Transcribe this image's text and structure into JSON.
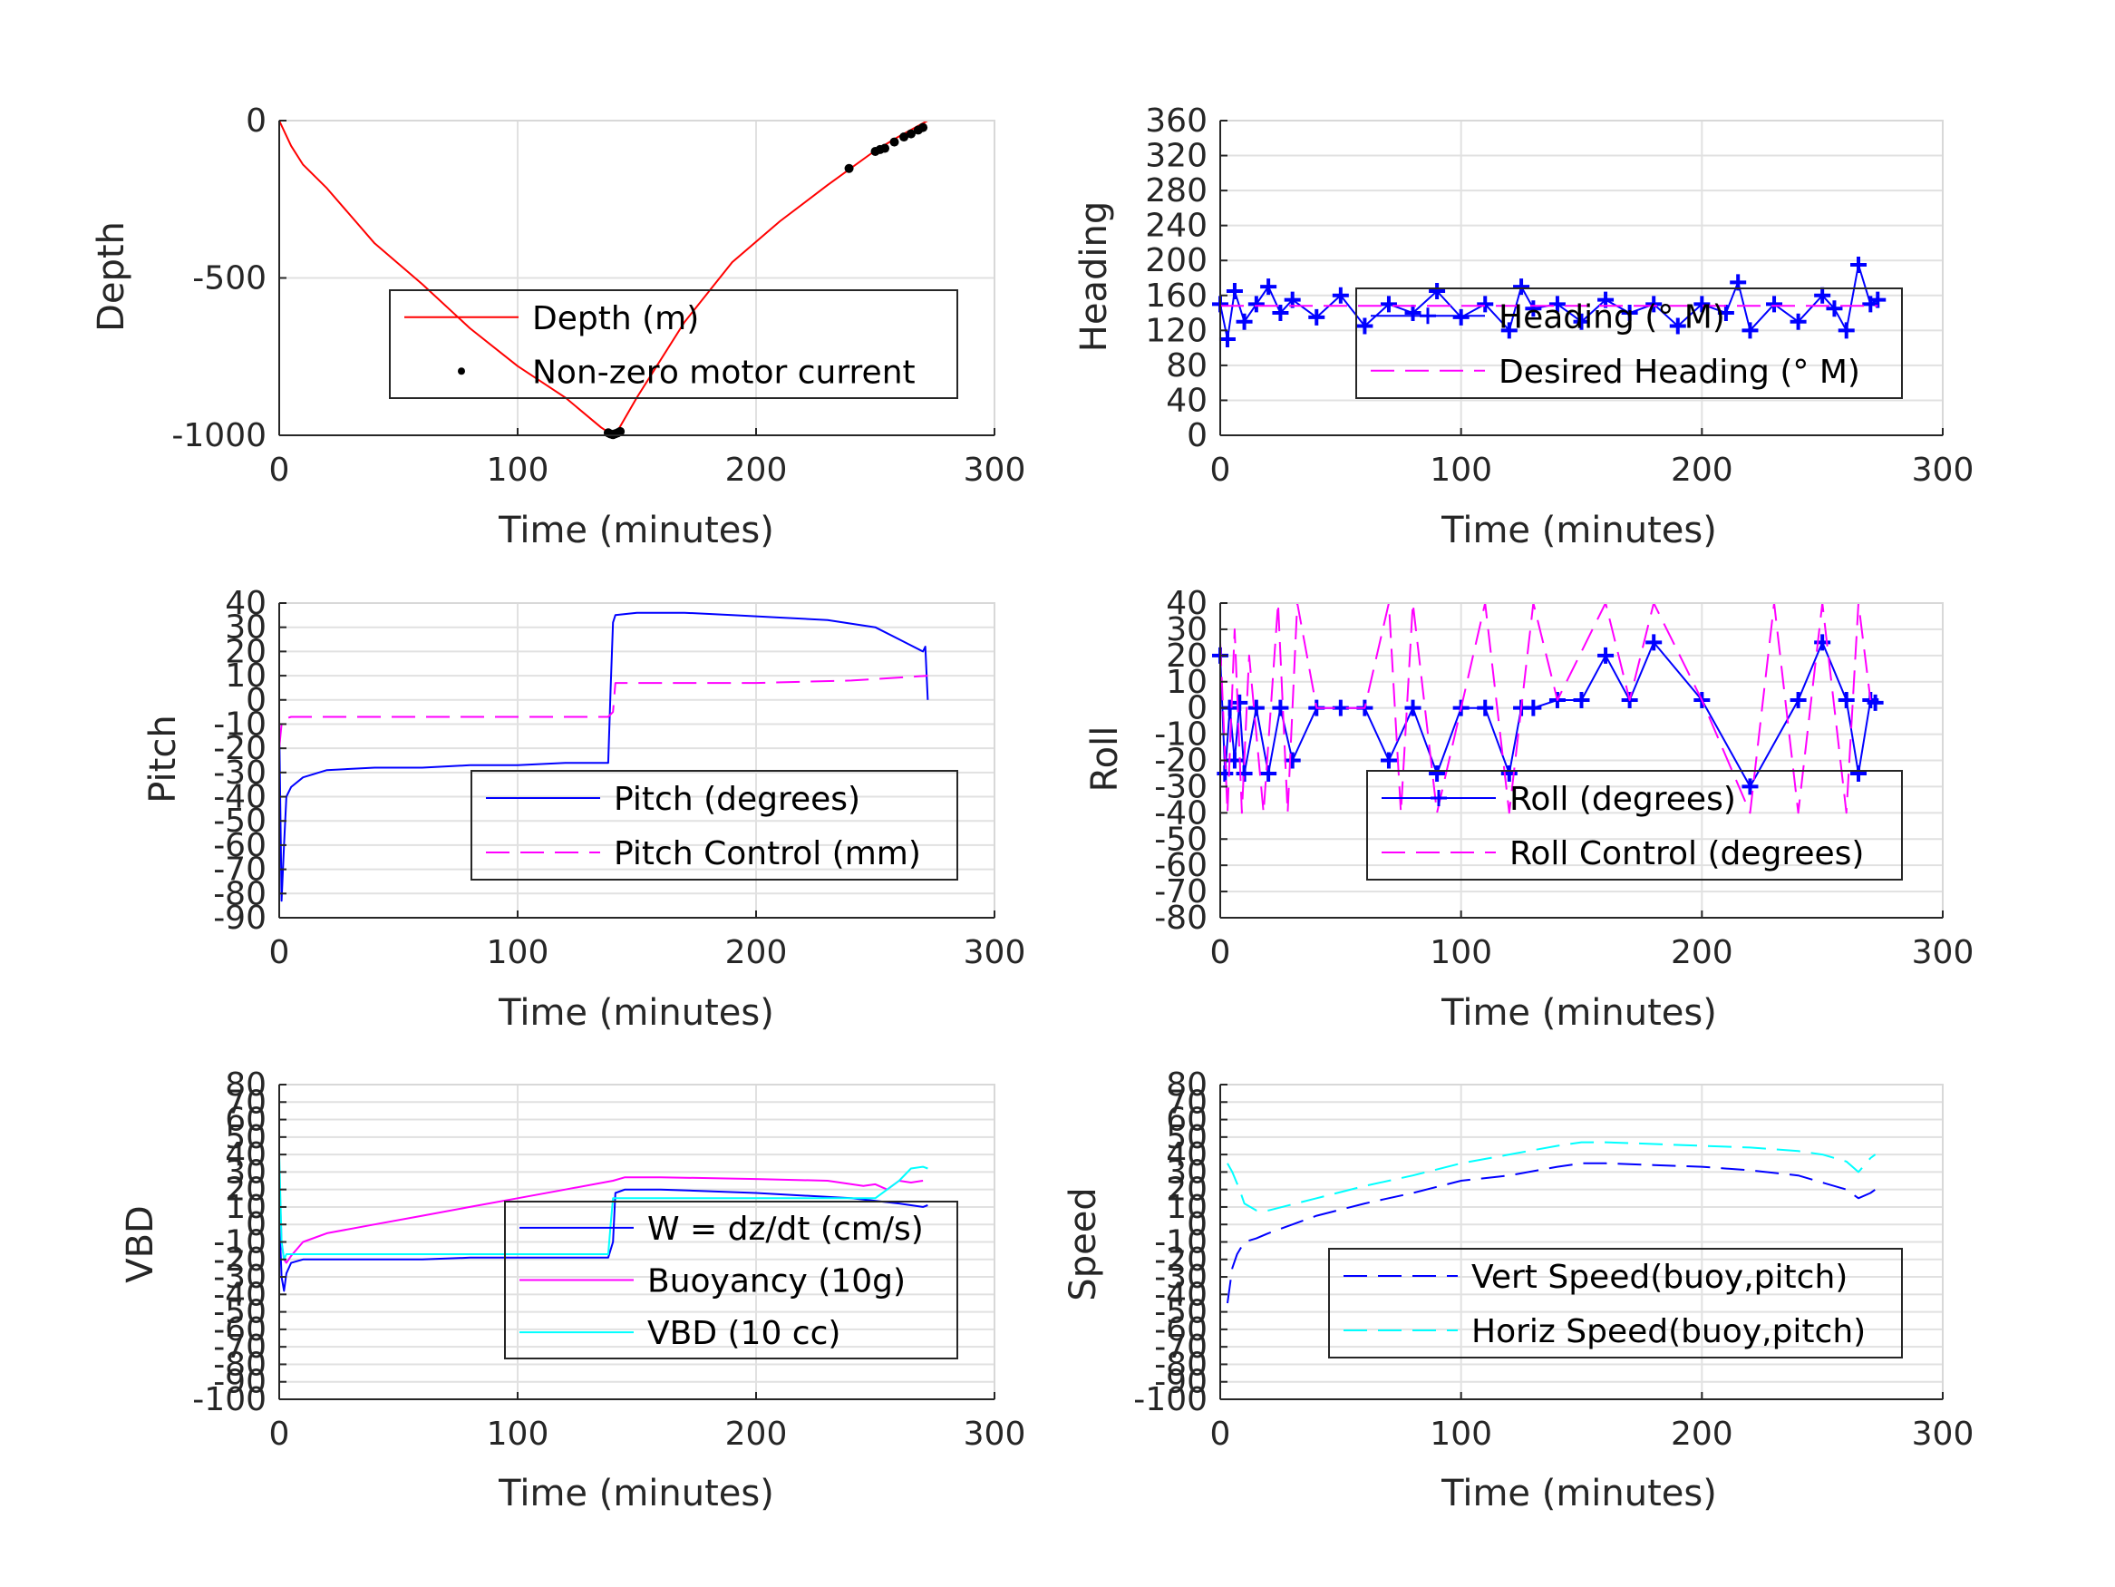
{
  "chart_data": [
    {
      "id": "depth",
      "type": "line",
      "title": "",
      "xlabel": "Time (minutes)",
      "ylabel": "Depth",
      "xlim": [
        0,
        300
      ],
      "ylim": [
        -1000,
        0
      ],
      "xticks": [
        "0",
        "100",
        "200",
        "300"
      ],
      "yticks": [
        "-1000",
        "-500",
        "0"
      ],
      "grid": true,
      "legend_position": "lower-right",
      "series": [
        {
          "name": "Depth (m)",
          "color": "#ff0000",
          "style": "solid",
          "x": [
            0,
            5,
            10,
            20,
            40,
            60,
            80,
            100,
            120,
            135,
            139,
            142,
            150,
            170,
            190,
            210,
            230,
            250,
            260,
            272
          ],
          "y": [
            0,
            -80,
            -140,
            -215,
            -390,
            -520,
            -660,
            -780,
            -880,
            -975,
            -995,
            -985,
            -880,
            -640,
            -450,
            -320,
            -205,
            -95,
            -50,
            0
          ]
        },
        {
          "name": "Non-zero motor current",
          "color": "#000000",
          "style": "markers",
          "x": [
            138,
            139,
            140,
            141,
            142,
            143,
            239,
            250,
            252,
            254,
            258,
            262,
            265,
            268,
            270
          ],
          "y": [
            -992,
            -996,
            -998,
            -995,
            -992,
            -988,
            -152,
            -98,
            -92,
            -88,
            -68,
            -52,
            -42,
            -30,
            -22
          ]
        }
      ]
    },
    {
      "id": "heading",
      "type": "line",
      "title": "",
      "xlabel": "Time (minutes)",
      "ylabel": "Heading",
      "xlim": [
        0,
        300
      ],
      "ylim": [
        0,
        360
      ],
      "xticks": [
        "0",
        "100",
        "200",
        "300"
      ],
      "yticks": [
        "0",
        "40",
        "80",
        "120",
        "160",
        "200",
        "240",
        "280",
        "320",
        "360"
      ],
      "grid": true,
      "legend_position": "center-right",
      "series": [
        {
          "name": "Heading (° M)",
          "color": "#0000ff",
          "style": "solid-plus-markers",
          "x": [
            0,
            3,
            6,
            10,
            15,
            20,
            25,
            30,
            40,
            50,
            60,
            70,
            80,
            90,
            100,
            110,
            120,
            125,
            130,
            140,
            150,
            160,
            170,
            180,
            190,
            200,
            210,
            215,
            220,
            230,
            240,
            250,
            255,
            260,
            265,
            270,
            273
          ],
          "y": [
            150,
            110,
            165,
            130,
            150,
            170,
            140,
            155,
            135,
            160,
            125,
            150,
            140,
            165,
            135,
            150,
            120,
            170,
            145,
            150,
            130,
            155,
            140,
            150,
            125,
            150,
            140,
            175,
            120,
            150,
            130,
            160,
            145,
            120,
            195,
            150,
            155
          ]
        },
        {
          "name": "Desired Heading (° M)",
          "color": "#ff00ff",
          "style": "dashed",
          "x": [
            0,
            273
          ],
          "y": [
            148,
            148
          ]
        }
      ]
    },
    {
      "id": "pitch",
      "type": "line",
      "title": "",
      "xlabel": "Time (minutes)",
      "ylabel": "Pitch",
      "xlim": [
        0,
        300
      ],
      "ylim": [
        -90,
        40
      ],
      "xticks": [
        "0",
        "100",
        "200",
        "300"
      ],
      "yticks": [
        "-90",
        "-80",
        "-70",
        "-60",
        "-50",
        "-40",
        "-30",
        "-20",
        "-10",
        "0",
        "10",
        "20",
        "30",
        "40"
      ],
      "grid": true,
      "legend_position": "lower-right",
      "series": [
        {
          "name": "Pitch (degrees)",
          "color": "#0000ff",
          "style": "solid",
          "x": [
            0,
            1,
            2,
            3,
            5,
            10,
            20,
            40,
            60,
            80,
            100,
            120,
            138,
            139,
            140,
            141,
            150,
            170,
            190,
            210,
            230,
            250,
            260,
            270,
            271,
            272
          ],
          "y": [
            -10,
            -83,
            -60,
            -40,
            -36,
            -32,
            -29,
            -28,
            -28,
            -27,
            -27,
            -26,
            -26,
            5,
            32,
            35,
            36,
            36,
            35,
            34,
            33,
            30,
            25,
            20,
            22,
            0
          ]
        },
        {
          "name": "Pitch Control (mm)",
          "color": "#ff00ff",
          "style": "dashed",
          "x": [
            0,
            1,
            2,
            5,
            20,
            60,
            100,
            138,
            140,
            141,
            160,
            200,
            240,
            272
          ],
          "y": [
            -20,
            -10,
            -8,
            -7,
            -7,
            -7,
            -7,
            -7,
            -5,
            7,
            7,
            7,
            8,
            10
          ]
        }
      ]
    },
    {
      "id": "roll",
      "type": "line",
      "title": "",
      "xlabel": "Time (minutes)",
      "ylabel": "Roll",
      "xlim": [
        0,
        300
      ],
      "ylim": [
        -80,
        40
      ],
      "xticks": [
        "0",
        "100",
        "200",
        "300"
      ],
      "yticks": [
        "-80",
        "-70",
        "-60",
        "-50",
        "-40",
        "-30",
        "-20",
        "-10",
        "0",
        "10",
        "20",
        "30",
        "40"
      ],
      "grid": true,
      "legend_position": "lower-right",
      "series": [
        {
          "name": "Roll (degrees)",
          "color": "#0000ff",
          "style": "solid-plus-markers",
          "x": [
            0,
            2,
            4,
            6,
            8,
            10,
            15,
            20,
            25,
            30,
            40,
            50,
            60,
            70,
            80,
            90,
            100,
            110,
            120,
            125,
            130,
            140,
            150,
            160,
            170,
            180,
            200,
            220,
            240,
            250,
            260,
            265,
            270,
            272
          ],
          "y": [
            20,
            -25,
            0,
            -20,
            2,
            -25,
            0,
            -25,
            0,
            -20,
            0,
            0,
            0,
            -20,
            0,
            -25,
            0,
            0,
            -25,
            0,
            0,
            3,
            3,
            20,
            3,
            25,
            3,
            -30,
            3,
            25,
            3,
            -25,
            3,
            2
          ]
        },
        {
          "name": "Roll Control (degrees)",
          "color": "#ff00ff",
          "style": "dashed",
          "x": [
            0,
            3,
            6,
            9,
            12,
            18,
            24,
            28,
            32,
            40,
            50,
            60,
            70,
            75,
            80,
            90,
            100,
            110,
            120,
            130,
            140,
            160,
            170,
            180,
            200,
            220,
            230,
            240,
            250,
            260,
            265,
            270
          ],
          "y": [
            25,
            -40,
            30,
            -40,
            20,
            -40,
            40,
            -40,
            40,
            0,
            0,
            0,
            40,
            -40,
            40,
            -40,
            0,
            40,
            -40,
            40,
            3,
            40,
            3,
            40,
            3,
            -40,
            40,
            -40,
            40,
            -40,
            40,
            3
          ]
        }
      ]
    },
    {
      "id": "vbd",
      "type": "line",
      "title": "",
      "xlabel": "Time (minutes)",
      "ylabel": "VBD",
      "xlim": [
        0,
        300
      ],
      "ylim": [
        -100,
        80
      ],
      "xticks": [
        "0",
        "100",
        "200",
        "300"
      ],
      "yticks": [
        "-100",
        "-90",
        "-80",
        "-70",
        "-60",
        "-50",
        "-40",
        "-30",
        "-20",
        "-10",
        "0",
        "10",
        "20",
        "30",
        "40",
        "50",
        "60",
        "70",
        "80"
      ],
      "grid": true,
      "legend_position": "lower-right",
      "series": [
        {
          "name": "W = dz/dt (cm/s)",
          "color": "#0000ff",
          "style": "solid",
          "x": [
            0,
            1,
            2,
            3,
            5,
            10,
            20,
            40,
            60,
            80,
            100,
            120,
            138,
            140,
            141,
            145,
            160,
            200,
            240,
            260,
            270,
            272
          ],
          "y": [
            5,
            -30,
            -38,
            -28,
            -22,
            -20,
            -20,
            -20,
            -20,
            -19,
            -19,
            -19,
            -19,
            -10,
            18,
            20,
            20,
            18,
            15,
            12,
            10,
            11
          ]
        },
        {
          "name": "Buoyancy (10g)",
          "color": "#ff00ff",
          "style": "solid",
          "x": [
            0,
            1,
            2,
            3,
            5,
            10,
            20,
            40,
            60,
            80,
            100,
            120,
            140,
            145,
            160,
            200,
            230,
            245,
            250,
            255,
            260,
            265,
            270
          ],
          "y": [
            30,
            -10,
            -20,
            -22,
            -18,
            -10,
            -5,
            0,
            5,
            10,
            15,
            20,
            25,
            27,
            27,
            26,
            25,
            22,
            23,
            20,
            25,
            24,
            25
          ]
        },
        {
          "name": "VBD (10 cc)",
          "color": "#00ffff",
          "style": "solid",
          "x": [
            0,
            1,
            2,
            3,
            5,
            10,
            20,
            40,
            60,
            80,
            100,
            120,
            138,
            139,
            140,
            150,
            200,
            240,
            250,
            255,
            260,
            265,
            270,
            272
          ],
          "y": [
            40,
            -10,
            -20,
            -17,
            -17,
            -17,
            -17,
            -17,
            -17,
            -17,
            -17,
            -17,
            -17,
            0,
            15,
            15,
            15,
            15,
            15,
            20,
            25,
            32,
            33,
            32
          ]
        }
      ]
    },
    {
      "id": "speed",
      "type": "line",
      "title": "",
      "xlabel": "Time (minutes)",
      "ylabel": "Speed",
      "xlim": [
        0,
        300
      ],
      "ylim": [
        -100,
        80
      ],
      "xticks": [
        "0",
        "100",
        "200",
        "300"
      ],
      "yticks": [
        "-100",
        "-90",
        "-80",
        "-70",
        "-60",
        "-50",
        "-40",
        "-30",
        "-20",
        "-10",
        "0",
        "10",
        "20",
        "30",
        "40",
        "50",
        "60",
        "70",
        "80"
      ],
      "grid": true,
      "legend_position": "lower-right",
      "series": [
        {
          "name": "Vert Speed(buoy,pitch)",
          "color": "#0000ff",
          "style": "dashed",
          "x": [
            3,
            5,
            7,
            10,
            15,
            20,
            40,
            60,
            80,
            100,
            120,
            140,
            150,
            160,
            180,
            200,
            220,
            240,
            250,
            260,
            265,
            270,
            272
          ],
          "y": [
            -45,
            -25,
            -17,
            -10,
            -8,
            -5,
            5,
            12,
            18,
            25,
            28,
            33,
            35,
            35,
            34,
            33,
            31,
            28,
            24,
            20,
            15,
            18,
            20
          ]
        },
        {
          "name": "Horiz Speed(buoy,pitch)",
          "color": "#00ffff",
          "style": "dashed",
          "x": [
            3,
            5,
            8,
            10,
            15,
            20,
            40,
            60,
            80,
            100,
            120,
            140,
            150,
            160,
            180,
            200,
            220,
            240,
            250,
            260,
            265,
            270,
            272
          ],
          "y": [
            35,
            30,
            20,
            12,
            8,
            8,
            15,
            22,
            28,
            35,
            40,
            45,
            47,
            47,
            46,
            45,
            44,
            42,
            40,
            36,
            30,
            38,
            40
          ]
        }
      ]
    }
  ]
}
